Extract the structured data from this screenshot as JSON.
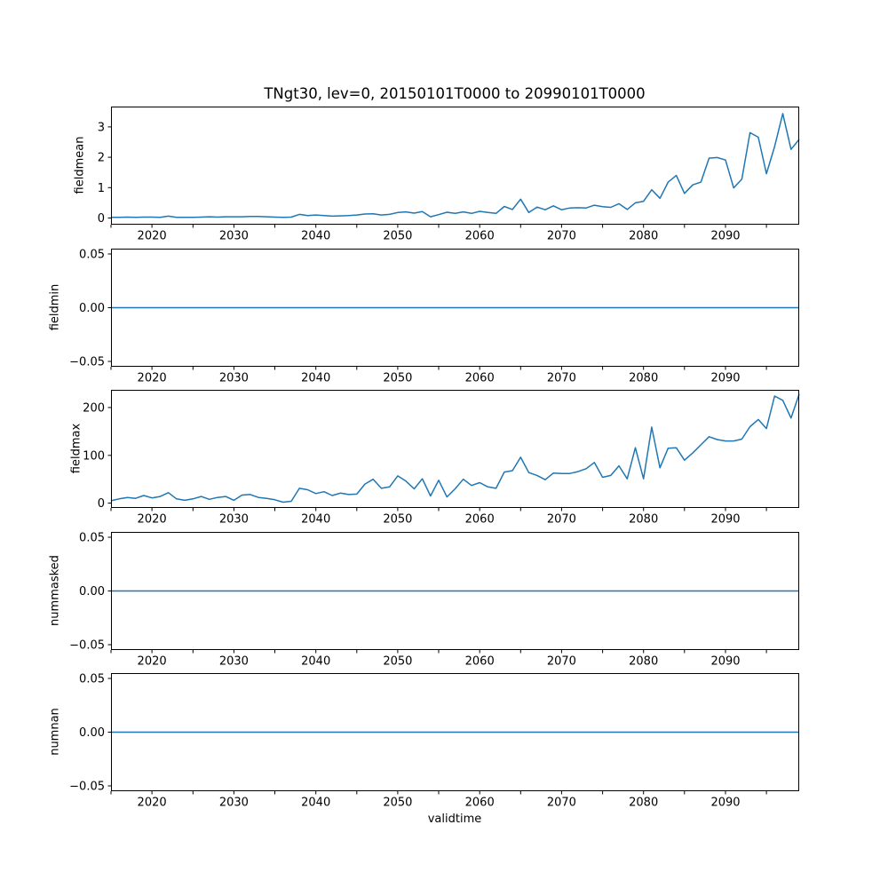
{
  "figure": {
    "title": "TNgt30, lev=0, 20150101T0000 to 20990101T0000",
    "xlabel": "validtime",
    "line_color": "#1f77b4",
    "axes_color": "#000000",
    "background_color": "#ffffff",
    "x_axis": {
      "xlim": [
        2015,
        2099
      ],
      "tick_values": [
        2020,
        2030,
        2040,
        2050,
        2060,
        2070,
        2080,
        2090
      ],
      "tick_labels": [
        "2020",
        "2030",
        "2040",
        "2050",
        "2060",
        "2070",
        "2080",
        "2090"
      ],
      "minor_tick_values": [
        2015,
        2025,
        2035,
        2045,
        2055,
        2065,
        2075,
        2085,
        2095
      ]
    }
  },
  "chart_data": [
    {
      "type": "line",
      "name": "fieldmean",
      "ylabel": "fieldmean",
      "ylim": [
        -0.22,
        3.67
      ],
      "ytick_values": [
        0,
        1,
        2,
        3
      ],
      "ytick_labels": [
        "0",
        "1",
        "2",
        "3"
      ],
      "x": [
        2015,
        2016,
        2017,
        2018,
        2019,
        2020,
        2021,
        2022,
        2023,
        2024,
        2025,
        2026,
        2027,
        2028,
        2029,
        2030,
        2031,
        2032,
        2033,
        2034,
        2035,
        2036,
        2037,
        2038,
        2039,
        2040,
        2041,
        2042,
        2043,
        2044,
        2045,
        2046,
        2047,
        2048,
        2049,
        2050,
        2051,
        2052,
        2053,
        2054,
        2055,
        2056,
        2057,
        2058,
        2059,
        2060,
        2061,
        2062,
        2063,
        2064,
        2065,
        2066,
        2067,
        2068,
        2069,
        2070,
        2071,
        2072,
        2073,
        2074,
        2075,
        2076,
        2077,
        2078,
        2079,
        2080,
        2081,
        2082,
        2083,
        2084,
        2085,
        2086,
        2087,
        2088,
        2089,
        2090,
        2091,
        2092,
        2093,
        2094,
        2095,
        2096,
        2097,
        2098,
        2099
      ],
      "values": [
        0.02,
        0.02,
        0.03,
        0.02,
        0.03,
        0.03,
        0.02,
        0.06,
        0.02,
        0.02,
        0.02,
        0.03,
        0.04,
        0.03,
        0.04,
        0.04,
        0.04,
        0.05,
        0.05,
        0.04,
        0.03,
        0.02,
        0.03,
        0.12,
        0.08,
        0.1,
        0.08,
        0.06,
        0.07,
        0.08,
        0.1,
        0.13,
        0.14,
        0.1,
        0.12,
        0.18,
        0.2,
        0.16,
        0.21,
        0.04,
        0.11,
        0.19,
        0.15,
        0.2,
        0.15,
        0.22,
        0.18,
        0.15,
        0.38,
        0.28,
        0.62,
        0.18,
        0.36,
        0.27,
        0.4,
        0.27,
        0.33,
        0.34,
        0.33,
        0.42,
        0.37,
        0.35,
        0.47,
        0.28,
        0.5,
        0.55,
        0.93,
        0.65,
        1.18,
        1.4,
        0.81,
        1.09,
        1.18,
        1.97,
        1.99,
        1.91,
        0.99,
        1.28,
        2.81,
        2.66,
        1.46,
        2.35,
        3.44,
        2.26,
        2.59
      ]
    },
    {
      "type": "line",
      "name": "fieldmin",
      "ylabel": "fieldmin",
      "ylim": [
        -0.055,
        0.055
      ],
      "ytick_values": [
        -0.05,
        0.0,
        0.05
      ],
      "ytick_labels": [
        "−0.05",
        "0.00",
        "0.05"
      ],
      "constant_value": 0.0
    },
    {
      "type": "line",
      "name": "fieldmax",
      "ylabel": "fieldmax",
      "ylim": [
        -10,
        237
      ],
      "ytick_values": [
        0,
        100,
        200
      ],
      "ytick_labels": [
        "0",
        "100",
        "200"
      ],
      "x": [
        2015,
        2016,
        2017,
        2018,
        2019,
        2020,
        2021,
        2022,
        2023,
        2024,
        2025,
        2026,
        2027,
        2028,
        2029,
        2030,
        2031,
        2032,
        2033,
        2034,
        2035,
        2036,
        2037,
        2038,
        2039,
        2040,
        2041,
        2042,
        2043,
        2044,
        2045,
        2046,
        2047,
        2048,
        2049,
        2050,
        2051,
        2052,
        2053,
        2054,
        2055,
        2056,
        2057,
        2058,
        2059,
        2060,
        2061,
        2062,
        2063,
        2064,
        2065,
        2066,
        2067,
        2068,
        2069,
        2070,
        2071,
        2072,
        2073,
        2074,
        2075,
        2076,
        2077,
        2078,
        2079,
        2080,
        2081,
        2082,
        2083,
        2084,
        2085,
        2086,
        2087,
        2088,
        2089,
        2090,
        2091,
        2092,
        2093,
        2094,
        2095,
        2096,
        2097,
        2098,
        2099
      ],
      "values": [
        5,
        9,
        12,
        10,
        16,
        11,
        14,
        22,
        9,
        6,
        9,
        14,
        8,
        12,
        14,
        6,
        17,
        18,
        12,
        10,
        7,
        2,
        4,
        31,
        28,
        20,
        24,
        16,
        21,
        18,
        19,
        40,
        50,
        31,
        34,
        57,
        46,
        30,
        51,
        15,
        48,
        13,
        30,
        50,
        37,
        43,
        34,
        31,
        65,
        68,
        96,
        64,
        58,
        49,
        63,
        62,
        62,
        66,
        72,
        85,
        54,
        58,
        78,
        51,
        116,
        51,
        159,
        74,
        115,
        116,
        90,
        105,
        122,
        139,
        133,
        130,
        130,
        134,
        160,
        175,
        156,
        224,
        215,
        178,
        228
      ]
    },
    {
      "type": "line",
      "name": "nummasked",
      "ylabel": "nummasked",
      "ylim": [
        -0.055,
        0.055
      ],
      "ytick_values": [
        -0.05,
        0.0,
        0.05
      ],
      "ytick_labels": [
        "−0.05",
        "0.00",
        "0.05"
      ],
      "constant_value": 0.0
    },
    {
      "type": "line",
      "name": "numnan",
      "ylabel": "numnan",
      "ylim": [
        -0.055,
        0.055
      ],
      "ytick_values": [
        -0.05,
        0.0,
        0.05
      ],
      "ytick_labels": [
        "−0.05",
        "0.00",
        "0.05"
      ],
      "constant_value": 0.0
    }
  ]
}
